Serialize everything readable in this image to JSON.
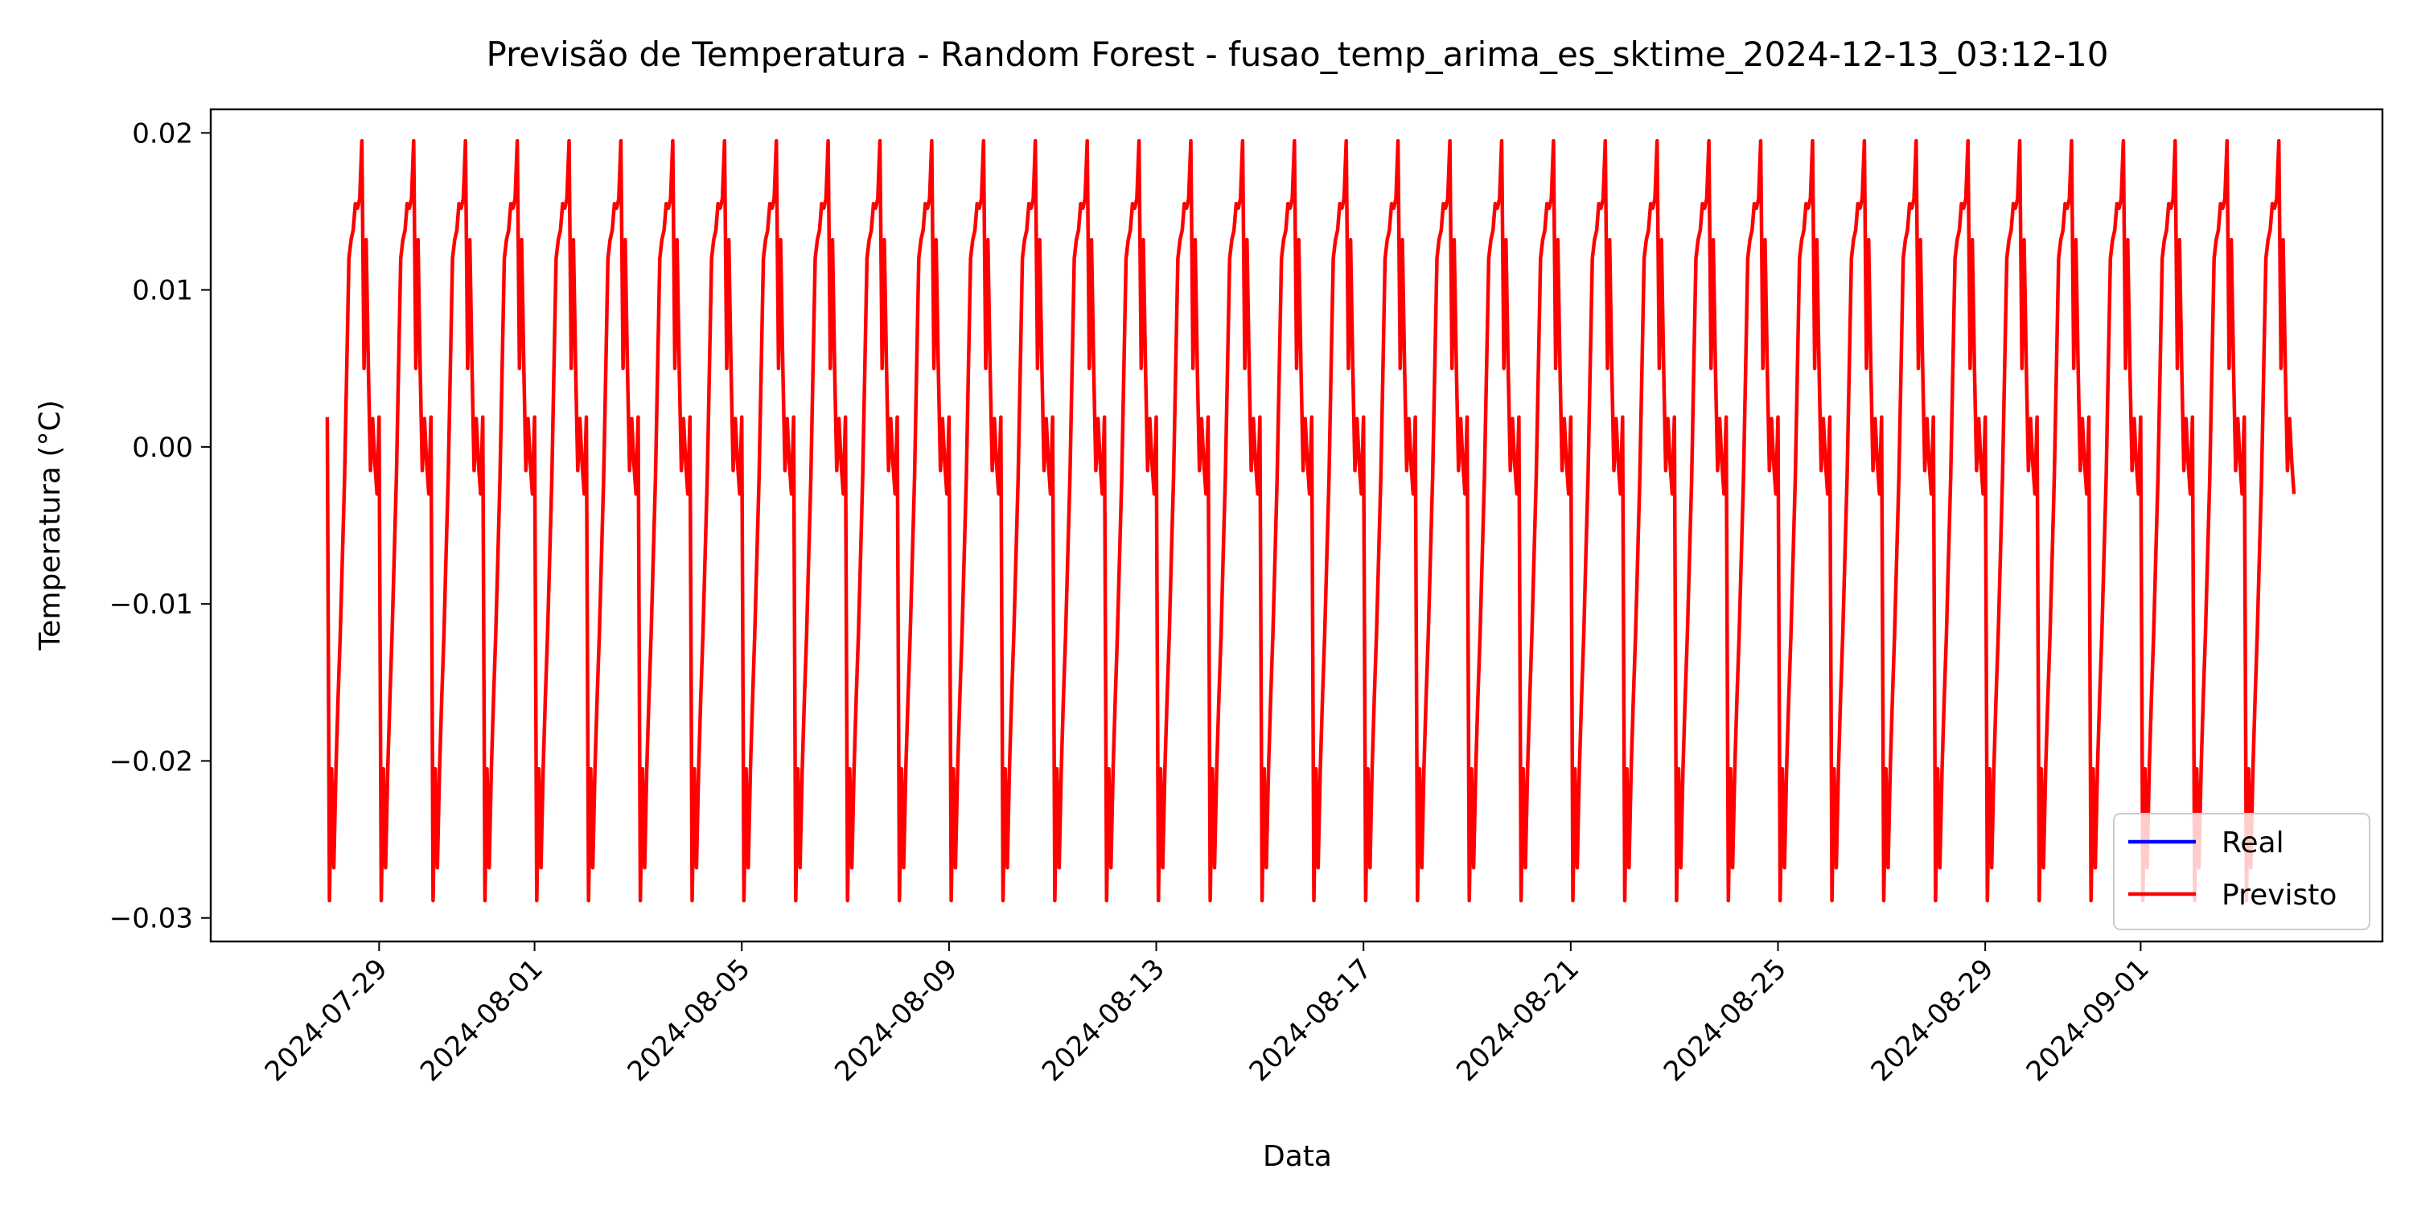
{
  "chart_data": {
    "type": "line",
    "title": "Previsão de Temperatura - Random Forest - fusao_temp_arima_es_sktime_2024-12-13_03:12-10",
    "xlabel": "Data",
    "ylabel": "Temperatura (°C)",
    "x_axis": {
      "type": "date",
      "range": [
        "2024-07-25T18:00",
        "2024-09-05T16:00"
      ],
      "ticks": [
        "2024-07-29",
        "2024-08-01",
        "2024-08-05",
        "2024-08-09",
        "2024-08-13",
        "2024-08-17",
        "2024-08-21",
        "2024-08-25",
        "2024-08-29",
        "2024-09-01"
      ]
    },
    "y_axis": {
      "range": [
        -0.0315,
        0.0215
      ],
      "ticks": [
        0.02,
        0.01,
        0.0,
        -0.01,
        -0.02,
        -0.03
      ],
      "tick_labels": [
        "0.02",
        "0.01",
        "0.00",
        "−0.01",
        "−0.02",
        "−0.03"
      ]
    },
    "grid": false,
    "legend": {
      "position": "lower right"
    },
    "series": [
      {
        "name": "Real",
        "color": "#0000ff",
        "x": [],
        "y": []
      },
      {
        "name": "Previsto",
        "color": "#ff0000",
        "start": "2024-07-28T00:00",
        "end": "2024-09-03T23:00",
        "frequency": "1h",
        "daily_profile": [
          0.0019,
          -0.0289,
          -0.0205,
          -0.0268,
          -0.0205,
          -0.016,
          -0.012,
          -0.007,
          -0.002,
          0.005,
          0.012,
          0.0132,
          0.0138,
          0.0155,
          0.0152,
          0.0158,
          0.0195,
          0.005,
          0.0132,
          0.0052,
          -0.0015,
          0.0018,
          -0.001,
          -0.003
        ]
      }
    ]
  }
}
